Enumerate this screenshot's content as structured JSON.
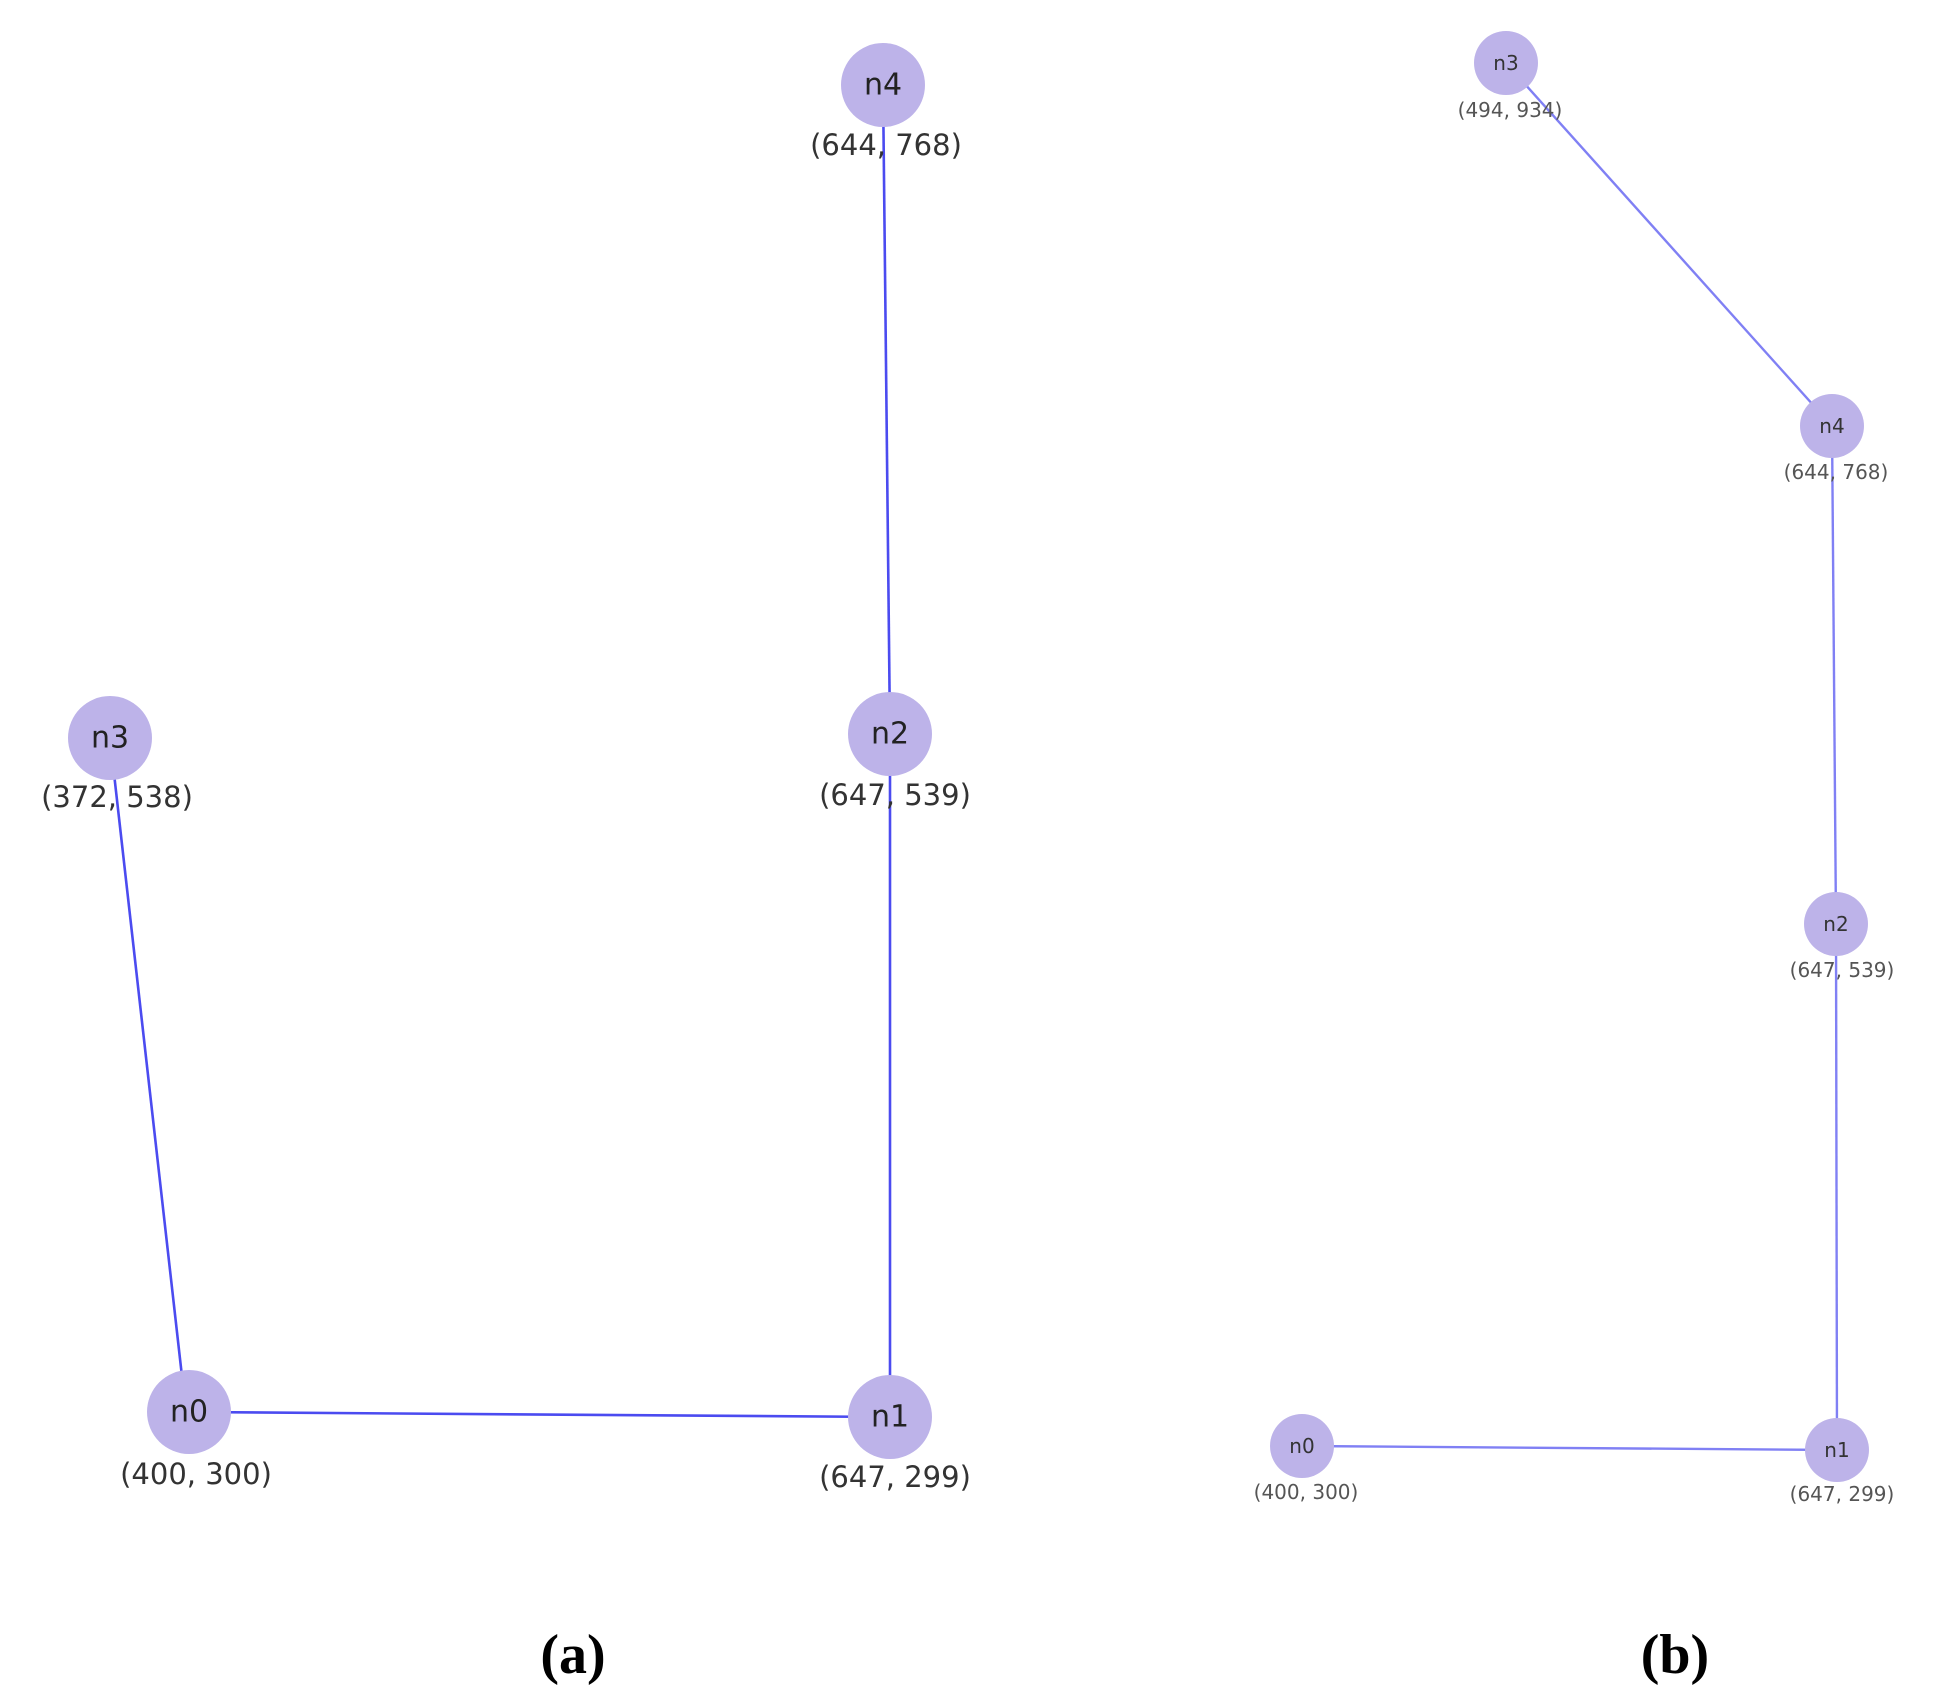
{
  "panels": [
    {
      "caption": "(a)",
      "nodes": [
        {
          "id": "n0",
          "coord": "(400, 300)"
        },
        {
          "id": "n1",
          "coord": "(647, 299)"
        },
        {
          "id": "n2",
          "coord": "(647, 539)"
        },
        {
          "id": "n3",
          "coord": "(372, 538)"
        },
        {
          "id": "n4",
          "coord": "(644, 768)"
        }
      ],
      "edges": [
        [
          "n3",
          "n0"
        ],
        [
          "n0",
          "n1"
        ],
        [
          "n1",
          "n2"
        ],
        [
          "n2",
          "n4"
        ]
      ]
    },
    {
      "caption": "(b)",
      "nodes": [
        {
          "id": "n0",
          "coord": "(400, 300)"
        },
        {
          "id": "n1",
          "coord": "(647, 299)"
        },
        {
          "id": "n2",
          "coord": "(647, 539)"
        },
        {
          "id": "n3",
          "coord": "(494, 934)"
        },
        {
          "id": "n4",
          "coord": "(644, 768)"
        }
      ],
      "edges": [
        [
          "n0",
          "n1"
        ],
        [
          "n1",
          "n2"
        ],
        [
          "n2",
          "n4"
        ],
        [
          "n4",
          "n3"
        ]
      ]
    }
  ]
}
